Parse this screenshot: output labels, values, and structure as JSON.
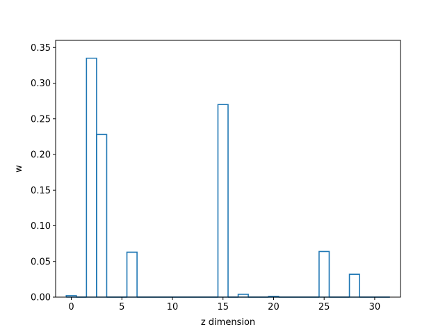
{
  "chart_data": {
    "type": "bar",
    "style": "step-outline",
    "xlabel": "z dimension",
    "ylabel": "w",
    "xlim": [
      -1.55,
      32.55
    ],
    "ylim": [
      0,
      0.36
    ],
    "grid": false,
    "x_ticks": [
      0,
      5,
      10,
      15,
      20,
      25,
      30
    ],
    "x_tick_labels": [
      "0",
      "5",
      "10",
      "15",
      "20",
      "25",
      "30"
    ],
    "y_ticks": [
      0.0,
      0.05,
      0.1,
      0.15,
      0.2,
      0.25,
      0.3,
      0.35
    ],
    "y_tick_labels": [
      "0.00",
      "0.05",
      "0.10",
      "0.15",
      "0.20",
      "0.25",
      "0.30",
      "0.35"
    ],
    "series": [
      {
        "color": "#1f77b4",
        "x": [
          0,
          1,
          2,
          3,
          4,
          5,
          6,
          7,
          8,
          9,
          10,
          11,
          12,
          13,
          14,
          15,
          16,
          17,
          18,
          19,
          20,
          21,
          22,
          23,
          24,
          25,
          26,
          27,
          28,
          29,
          30,
          31
        ],
        "values": [
          0.002,
          0,
          0.335,
          0.228,
          0,
          0,
          0.063,
          0,
          0,
          0,
          0,
          0,
          0,
          0,
          0,
          0.27,
          0,
          0.004,
          0,
          0,
          0.001,
          0,
          0,
          0,
          0,
          0.064,
          0,
          0,
          0.032,
          0,
          0,
          0
        ]
      }
    ]
  }
}
